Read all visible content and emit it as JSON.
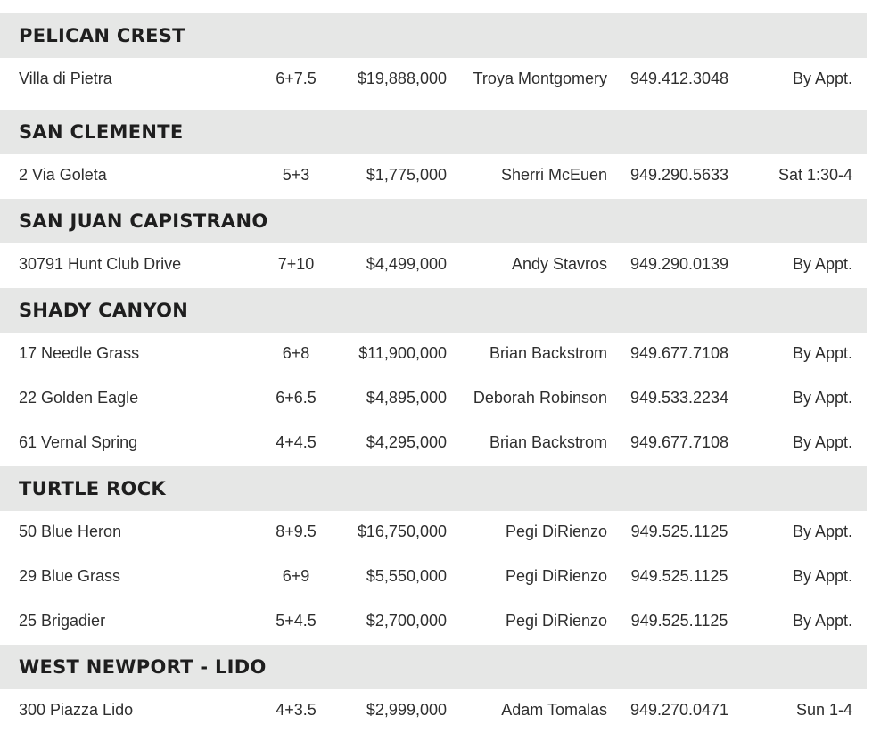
{
  "sections": [
    {
      "name": "PELICAN CREST",
      "rows": [
        {
          "address": "Villa di Pietra",
          "rooms": "6+7.5",
          "price": "$19,888,000",
          "agent": "Troya Montgomery",
          "phone": "949.412.3048",
          "open": "By Appt."
        }
      ]
    },
    {
      "name": "SAN CLEMENTE",
      "rows": [
        {
          "address": "2 Via Goleta",
          "rooms": "5+3",
          "price": "$1,775,000",
          "agent": "Sherri McEuen",
          "phone": "949.290.5633",
          "open": "Sat 1:30-4"
        }
      ]
    },
    {
      "name": "SAN JUAN CAPISTRANO",
      "rows": [
        {
          "address": "30791 Hunt Club Drive",
          "rooms": "7+10",
          "price": "$4,499,000",
          "agent": "Andy Stavros",
          "phone": "949.290.0139",
          "open": "By Appt."
        }
      ]
    },
    {
      "name": "SHADY CANYON",
      "rows": [
        {
          "address": "17 Needle Grass",
          "rooms": "6+8",
          "price": "$11,900,000",
          "agent": "Brian Backstrom",
          "phone": "949.677.7108",
          "open": "By Appt."
        },
        {
          "address": "22 Golden Eagle",
          "rooms": "6+6.5",
          "price": "$4,895,000",
          "agent": "Deborah Robinson",
          "phone": "949.533.2234",
          "open": "By Appt."
        },
        {
          "address": "61 Vernal Spring",
          "rooms": "4+4.5",
          "price": "$4,295,000",
          "agent": "Brian Backstrom",
          "phone": "949.677.7108",
          "open": "By Appt."
        }
      ]
    },
    {
      "name": "TURTLE ROCK",
      "rows": [
        {
          "address": "50 Blue Heron",
          "rooms": "8+9.5",
          "price": "$16,750,000",
          "agent": "Pegi DiRienzo",
          "phone": "949.525.1125",
          "open": "By Appt."
        },
        {
          "address": "29 Blue Grass",
          "rooms": "6+9",
          "price": "$5,550,000",
          "agent": "Pegi DiRienzo",
          "phone": "949.525.1125",
          "open": "By Appt."
        },
        {
          "address": "25 Brigadier",
          "rooms": "5+4.5",
          "price": "$2,700,000",
          "agent": "Pegi DiRienzo",
          "phone": "949.525.1125",
          "open": "By Appt."
        }
      ]
    },
    {
      "name": "WEST NEWPORT - LIDO",
      "rows": [
        {
          "address": "300 Piazza Lido",
          "rooms": "4+3.5",
          "price": "$2,999,000",
          "agent": "Adam Tomalas",
          "phone": "949.270.0471",
          "open": "Sun 1-4"
        }
      ]
    }
  ]
}
